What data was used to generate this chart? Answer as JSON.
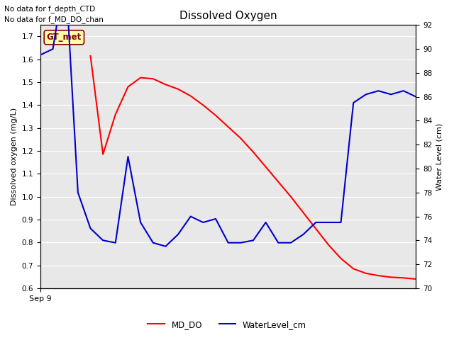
{
  "title": "Dissolved Oxygen",
  "ylabel_left": "Dissolved oxygen (mg/L)",
  "ylabel_right": "Water Level (cm)",
  "xlabel_tick": "Sep 9",
  "annotations": [
    "No data for f_depth_CTD",
    "No data for f_MD_DO_chan"
  ],
  "gt_met_label": "GT_met",
  "ylim_left": [
    0.6,
    1.75
  ],
  "ylim_right": [
    70,
    92
  ],
  "yticks_left": [
    0.6,
    0.7,
    0.8,
    0.9,
    1.0,
    1.1,
    1.2,
    1.3,
    1.4,
    1.5,
    1.6,
    1.7
  ],
  "yticks_right": [
    70,
    72,
    74,
    76,
    78,
    80,
    82,
    84,
    86,
    88,
    90,
    92
  ],
  "background_color": "#e8e8e8",
  "MD_DO_color": "#ff0000",
  "WaterLevel_color": "#0000cc",
  "MD_DO_x": [
    4,
    5,
    6,
    7,
    8,
    9,
    10,
    11,
    12,
    13,
    14,
    15,
    16,
    17,
    18,
    19,
    20,
    21,
    22,
    23,
    24,
    25,
    26,
    27,
    28,
    29,
    30
  ],
  "MD_DO_y": [
    1.615,
    1.185,
    1.36,
    1.48,
    1.52,
    1.515,
    1.49,
    1.47,
    1.44,
    1.4,
    1.355,
    1.305,
    1.255,
    1.195,
    1.13,
    1.065,
    1.0,
    0.93,
    0.86,
    0.79,
    0.73,
    0.685,
    0.665,
    0.655,
    0.648,
    0.645,
    0.64
  ],
  "WaterLevel_x": [
    0,
    1,
    2,
    3,
    4,
    5,
    6,
    7,
    8,
    9,
    10,
    11,
    12,
    13,
    14,
    15,
    16,
    17,
    18,
    19,
    20,
    21,
    22,
    23,
    24,
    25,
    26,
    27,
    28,
    29,
    30
  ],
  "WaterLevel_y": [
    89.5,
    90.0,
    96.5,
    78.0,
    75.0,
    74.0,
    73.8,
    81.0,
    75.5,
    73.8,
    73.5,
    74.5,
    76.0,
    75.5,
    75.8,
    73.8,
    73.8,
    74.0,
    75.5,
    73.8,
    73.8,
    74.5,
    75.5,
    75.5,
    75.5,
    85.5,
    86.2,
    86.5,
    86.2,
    86.5,
    86.0
  ],
  "legend_entries": [
    "MD_DO",
    "WaterLevel_cm"
  ],
  "legend_colors": [
    "#ff0000",
    "#0000cc"
  ]
}
